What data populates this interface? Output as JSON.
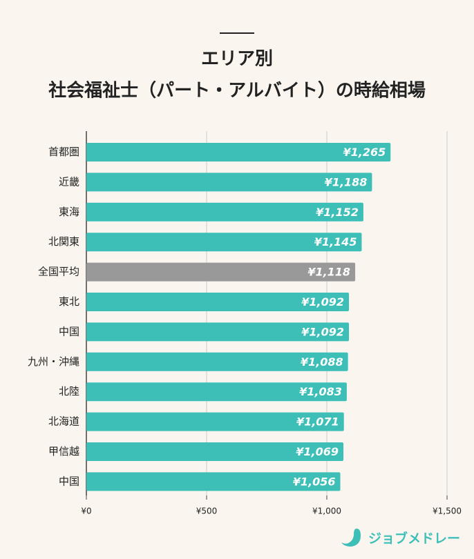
{
  "chart_data": {
    "type": "barh",
    "title": [
      "エリア別",
      "社会福祉士（パート・アルバイト）の時給相場"
    ],
    "categories": [
      "首都圏",
      "近畿",
      "東海",
      "北関東",
      "全国平均",
      "東北",
      "中国",
      "九州・沖縄",
      "北陸",
      "北海道",
      "甲信越",
      "中国"
    ],
    "values": [
      1265,
      1188,
      1152,
      1145,
      1118,
      1092,
      1092,
      1088,
      1083,
      1071,
      1069,
      1056
    ],
    "value_labels": [
      "¥1,265",
      "¥1,188",
      "¥1,152",
      "¥1,145",
      "¥1,118",
      "¥1,092",
      "¥1,092",
      "¥1,088",
      "¥1,083",
      "¥1,071",
      "¥1,069",
      "¥1,056"
    ],
    "colors": [
      "#3dbfb8",
      "#3dbfb8",
      "#3dbfb8",
      "#3dbfb8",
      "#999999",
      "#3dbfb8",
      "#3dbfb8",
      "#3dbfb8",
      "#3dbfb8",
      "#3dbfb8",
      "#3dbfb8",
      "#3dbfb8"
    ],
    "xlim": [
      0,
      1500
    ],
    "xticks": [
      {
        "value": 0,
        "label": "¥0"
      },
      {
        "value": 500,
        "label": "¥500"
      },
      {
        "value": 1000,
        "label": "¥1,000"
      },
      {
        "value": 1500,
        "label": "¥1,500"
      }
    ],
    "grid": true
  },
  "brand": "ジョブメドレー"
}
